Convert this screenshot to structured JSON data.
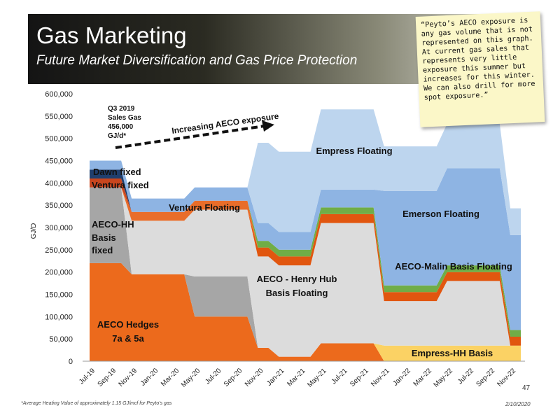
{
  "header": {
    "title": "Gas Marketing",
    "subtitle": "Future Market Diversification and Gas Price Protection"
  },
  "sticky_note": "“Peyto’s AECO exposure is any gas volume that is not represented on this graph. At current gas sales that represents very little exposure this summer but increases for this winter. We can also drill for more spot exposure.”",
  "footer": {
    "footnote": "*Average Heating Value of approximately 1.15 GJ/mcf for Peyto's gas",
    "date": "2/10/2020",
    "page": "47"
  },
  "chart_data": {
    "type": "area",
    "stacked": true,
    "ylabel": "GJ/D",
    "ylim": [
      0,
      600000
    ],
    "yticks": [
      "0",
      "50,000",
      "100,000",
      "150,000",
      "200,000",
      "250,000",
      "300,000",
      "350,000",
      "400,000",
      "450,000",
      "500,000",
      "550,000",
      "600,000"
    ],
    "x_tick_labels": [
      "Jul-19",
      "Sep-19",
      "Nov-19",
      "Jan-20",
      "Mar-20",
      "May-20",
      "Jul-20",
      "Sep-20",
      "Nov-20",
      "Jan-21",
      "Mar-21",
      "May-21",
      "Jul-21",
      "Sep-21",
      "Nov-21",
      "Jan-22",
      "Mar-22",
      "May-22",
      "Jul-22",
      "Sep-22",
      "Nov-22"
    ],
    "x": [
      "Jul-19",
      "Aug-19",
      "Sep-19",
      "Oct-19",
      "Nov-19",
      "Dec-19",
      "Jan-20",
      "Feb-20",
      "Mar-20",
      "Apr-20",
      "May-20",
      "Jun-20",
      "Jul-20",
      "Aug-20",
      "Sep-20",
      "Oct-20",
      "Nov-20",
      "Dec-20",
      "Jan-21",
      "Feb-21",
      "Mar-21",
      "Apr-21",
      "May-21",
      "Jun-21",
      "Jul-21",
      "Aug-21",
      "Sep-21",
      "Oct-21",
      "Nov-21",
      "Dec-21",
      "Jan-22",
      "Feb-22",
      "Mar-22",
      "Apr-22",
      "May-22",
      "Jun-22",
      "Jul-22",
      "Aug-22",
      "Sep-22",
      "Oct-22",
      "Nov-22",
      "Dec-22"
    ],
    "series": [
      {
        "name": "AECO Hedges 7a & 5a",
        "color": "#ec6a1c",
        "values": [
          220000,
          220000,
          220000,
          220000,
          195000,
          195000,
          195000,
          195000,
          195000,
          195000,
          100000,
          100000,
          100000,
          100000,
          100000,
          100000,
          30000,
          30000,
          10000,
          10000,
          10000,
          10000,
          40000,
          40000,
          40000,
          40000,
          40000,
          40000,
          0,
          0,
          0,
          0,
          0,
          0,
          0,
          0,
          0,
          0,
          0,
          0,
          0,
          0
        ]
      },
      {
        "name": "Empress-HH Basis",
        "color": "#fbd264",
        "values": [
          0,
          0,
          0,
          0,
          0,
          0,
          0,
          0,
          0,
          0,
          0,
          0,
          0,
          0,
          0,
          0,
          0,
          0,
          0,
          0,
          0,
          0,
          0,
          0,
          0,
          0,
          0,
          0,
          35000,
          35000,
          35000,
          35000,
          35000,
          35000,
          35000,
          35000,
          35000,
          35000,
          35000,
          35000,
          35000,
          35000
        ]
      },
      {
        "name": "AECO-HH Basis fixed",
        "color": "#a6a6a6",
        "values": [
          170000,
          170000,
          170000,
          170000,
          0,
          0,
          0,
          0,
          0,
          0,
          90000,
          90000,
          90000,
          90000,
          90000,
          90000,
          0,
          0,
          0,
          0,
          0,
          0,
          0,
          0,
          0,
          0,
          0,
          0,
          0,
          0,
          0,
          0,
          0,
          0,
          0,
          0,
          0,
          0,
          0,
          0,
          0,
          0
        ]
      },
      {
        "name": "AECO - Henry Hub Basis Floating",
        "color": "#dcdcdc",
        "values": [
          0,
          0,
          0,
          0,
          120000,
          120000,
          120000,
          120000,
          120000,
          120000,
          150000,
          150000,
          150000,
          150000,
          150000,
          150000,
          205000,
          205000,
          205000,
          205000,
          205000,
          205000,
          270000,
          270000,
          270000,
          270000,
          270000,
          270000,
          100000,
          100000,
          100000,
          100000,
          100000,
          100000,
          145000,
          145000,
          145000,
          145000,
          145000,
          145000,
          0,
          0
        ]
      },
      {
        "name": "AECO-Malin Basis Floating",
        "color": "#e1560f",
        "values": [
          0,
          0,
          0,
          0,
          0,
          0,
          0,
          0,
          0,
          0,
          0,
          0,
          0,
          0,
          0,
          0,
          20000,
          20000,
          20000,
          20000,
          20000,
          20000,
          20000,
          20000,
          20000,
          20000,
          20000,
          20000,
          20000,
          20000,
          20000,
          20000,
          20000,
          20000,
          20000,
          20000,
          20000,
          20000,
          20000,
          20000,
          20000,
          20000
        ]
      },
      {
        "name": "Ventura Floating",
        "color": "#e96d2a",
        "values": [
          0,
          0,
          0,
          0,
          20000,
          20000,
          20000,
          20000,
          20000,
          20000,
          20000,
          20000,
          20000,
          20000,
          20000,
          20000,
          0,
          0,
          0,
          0,
          0,
          0,
          0,
          0,
          0,
          0,
          0,
          0,
          0,
          0,
          0,
          0,
          0,
          0,
          0,
          0,
          0,
          0,
          0,
          0,
          0,
          0
        ]
      },
      {
        "name": "",
        "color": "#70ad47",
        "values": [
          0,
          0,
          0,
          0,
          0,
          0,
          0,
          0,
          0,
          0,
          0,
          0,
          0,
          0,
          0,
          0,
          15000,
          15000,
          15000,
          15000,
          15000,
          15000,
          15000,
          15000,
          15000,
          15000,
          15000,
          15000,
          15000,
          15000,
          15000,
          15000,
          15000,
          15000,
          15000,
          15000,
          15000,
          15000,
          15000,
          15000,
          15000,
          15000
        ]
      },
      {
        "name": "Ventura fixed",
        "color": "#c8461e",
        "values": [
          20000,
          20000,
          20000,
          20000,
          0,
          0,
          0,
          0,
          0,
          0,
          0,
          0,
          0,
          0,
          0,
          0,
          0,
          0,
          0,
          0,
          0,
          0,
          0,
          0,
          0,
          0,
          0,
          0,
          0,
          0,
          0,
          0,
          0,
          0,
          0,
          0,
          0,
          0,
          0,
          0,
          0,
          0
        ]
      },
      {
        "name": "Dawn fixed",
        "color": "#1f3f6e",
        "values": [
          20000,
          20000,
          20000,
          20000,
          0,
          0,
          0,
          0,
          0,
          0,
          0,
          0,
          0,
          0,
          0,
          0,
          0,
          0,
          0,
          0,
          0,
          0,
          0,
          0,
          0,
          0,
          0,
          0,
          0,
          0,
          0,
          0,
          0,
          0,
          0,
          0,
          0,
          0,
          0,
          0,
          0,
          0
        ]
      },
      {
        "name": "Emerson Floating",
        "color": "#8eb4e3",
        "values": [
          20000,
          20000,
          20000,
          20000,
          30000,
          30000,
          30000,
          30000,
          30000,
          30000,
          30000,
          30000,
          30000,
          30000,
          30000,
          30000,
          40000,
          40000,
          40000,
          40000,
          40000,
          40000,
          40000,
          40000,
          40000,
          40000,
          40000,
          40000,
          212000,
          212000,
          212000,
          212000,
          212000,
          212000,
          218000,
          218000,
          218000,
          218000,
          218000,
          218000,
          213000,
          213000
        ]
      },
      {
        "name": "Empress Floating",
        "color": "#bdd5ee",
        "values": [
          0,
          0,
          0,
          0,
          0,
          0,
          0,
          0,
          0,
          0,
          0,
          0,
          0,
          0,
          0,
          0,
          180000,
          180000,
          180000,
          180000,
          180000,
          180000,
          180000,
          180000,
          180000,
          180000,
          180000,
          180000,
          100000,
          100000,
          100000,
          100000,
          100000,
          100000,
          100000,
          100000,
          100000,
          100000,
          100000,
          100000,
          60000,
          60000
        ]
      }
    ],
    "annotations": {
      "sales_note": [
        "Q3 2019",
        "Sales Gas",
        "456,000",
        "GJ/d*"
      ],
      "arrow_label": "Increasing AECO exposure"
    }
  }
}
